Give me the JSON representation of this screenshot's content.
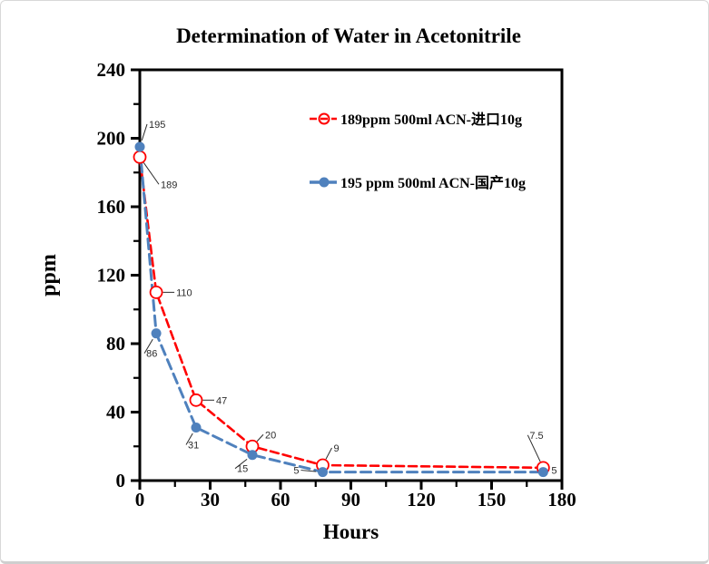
{
  "chart_data": {
    "type": "line",
    "title": "Determination of Water in Acetonitrile",
    "xlabel": "Hours",
    "ylabel": "ppm",
    "xlim": [
      0,
      180
    ],
    "ylim": [
      0,
      240
    ],
    "x_major_ticks": [
      0,
      30,
      60,
      90,
      120,
      150,
      180
    ],
    "x_minor_step": 15,
    "y_major_ticks": [
      0,
      40,
      80,
      120,
      160,
      200,
      240
    ],
    "y_minor_step": 20,
    "grid": false,
    "legend_position": "top-right-inside",
    "frame_color": "#000000",
    "point_label_color": "#2b2b2b",
    "series": [
      {
        "name": "189ppm  500ml ACN-进口10g",
        "color": "#FF0000",
        "marker": "open-circle",
        "line_style": "dashed",
        "dash": "9 5",
        "line_width": 2.6,
        "x": [
          0,
          7,
          24,
          48,
          78,
          172
        ],
        "values": [
          189,
          110,
          47,
          20,
          9,
          7.5
        ],
        "labels": [
          "189",
          "110",
          "47",
          "20",
          "9",
          "7.5"
        ],
        "label_offsets": [
          [
            23,
            34
          ],
          [
            22,
            4
          ],
          [
            22,
            4
          ],
          [
            14,
            -9
          ],
          [
            12,
            -15
          ],
          [
            -15,
            -32
          ]
        ],
        "label_anchors": [
          "s",
          "s",
          "s",
          "s",
          "s",
          "s"
        ]
      },
      {
        "name": "195 ppm 500ml ACN-国产10g",
        "color": "#4F81BD",
        "marker": "filled-circle",
        "line_style": "dashed",
        "dash": "11 6",
        "line_width": 3,
        "x": [
          0,
          7,
          24,
          48,
          78,
          172
        ],
        "values": [
          195,
          86,
          31,
          15,
          5,
          5
        ],
        "labels": [
          "195",
          "86",
          "31",
          "15",
          "5",
          "5"
        ],
        "label_offsets": [
          [
            10,
            -21
          ],
          [
            -11,
            26
          ],
          [
            -9,
            23
          ],
          [
            -17,
            19
          ],
          [
            -26,
            2
          ],
          [
            9,
            2
          ]
        ],
        "label_anchors": [
          "s",
          "s",
          "s",
          "s",
          "e",
          "s"
        ]
      }
    ]
  }
}
